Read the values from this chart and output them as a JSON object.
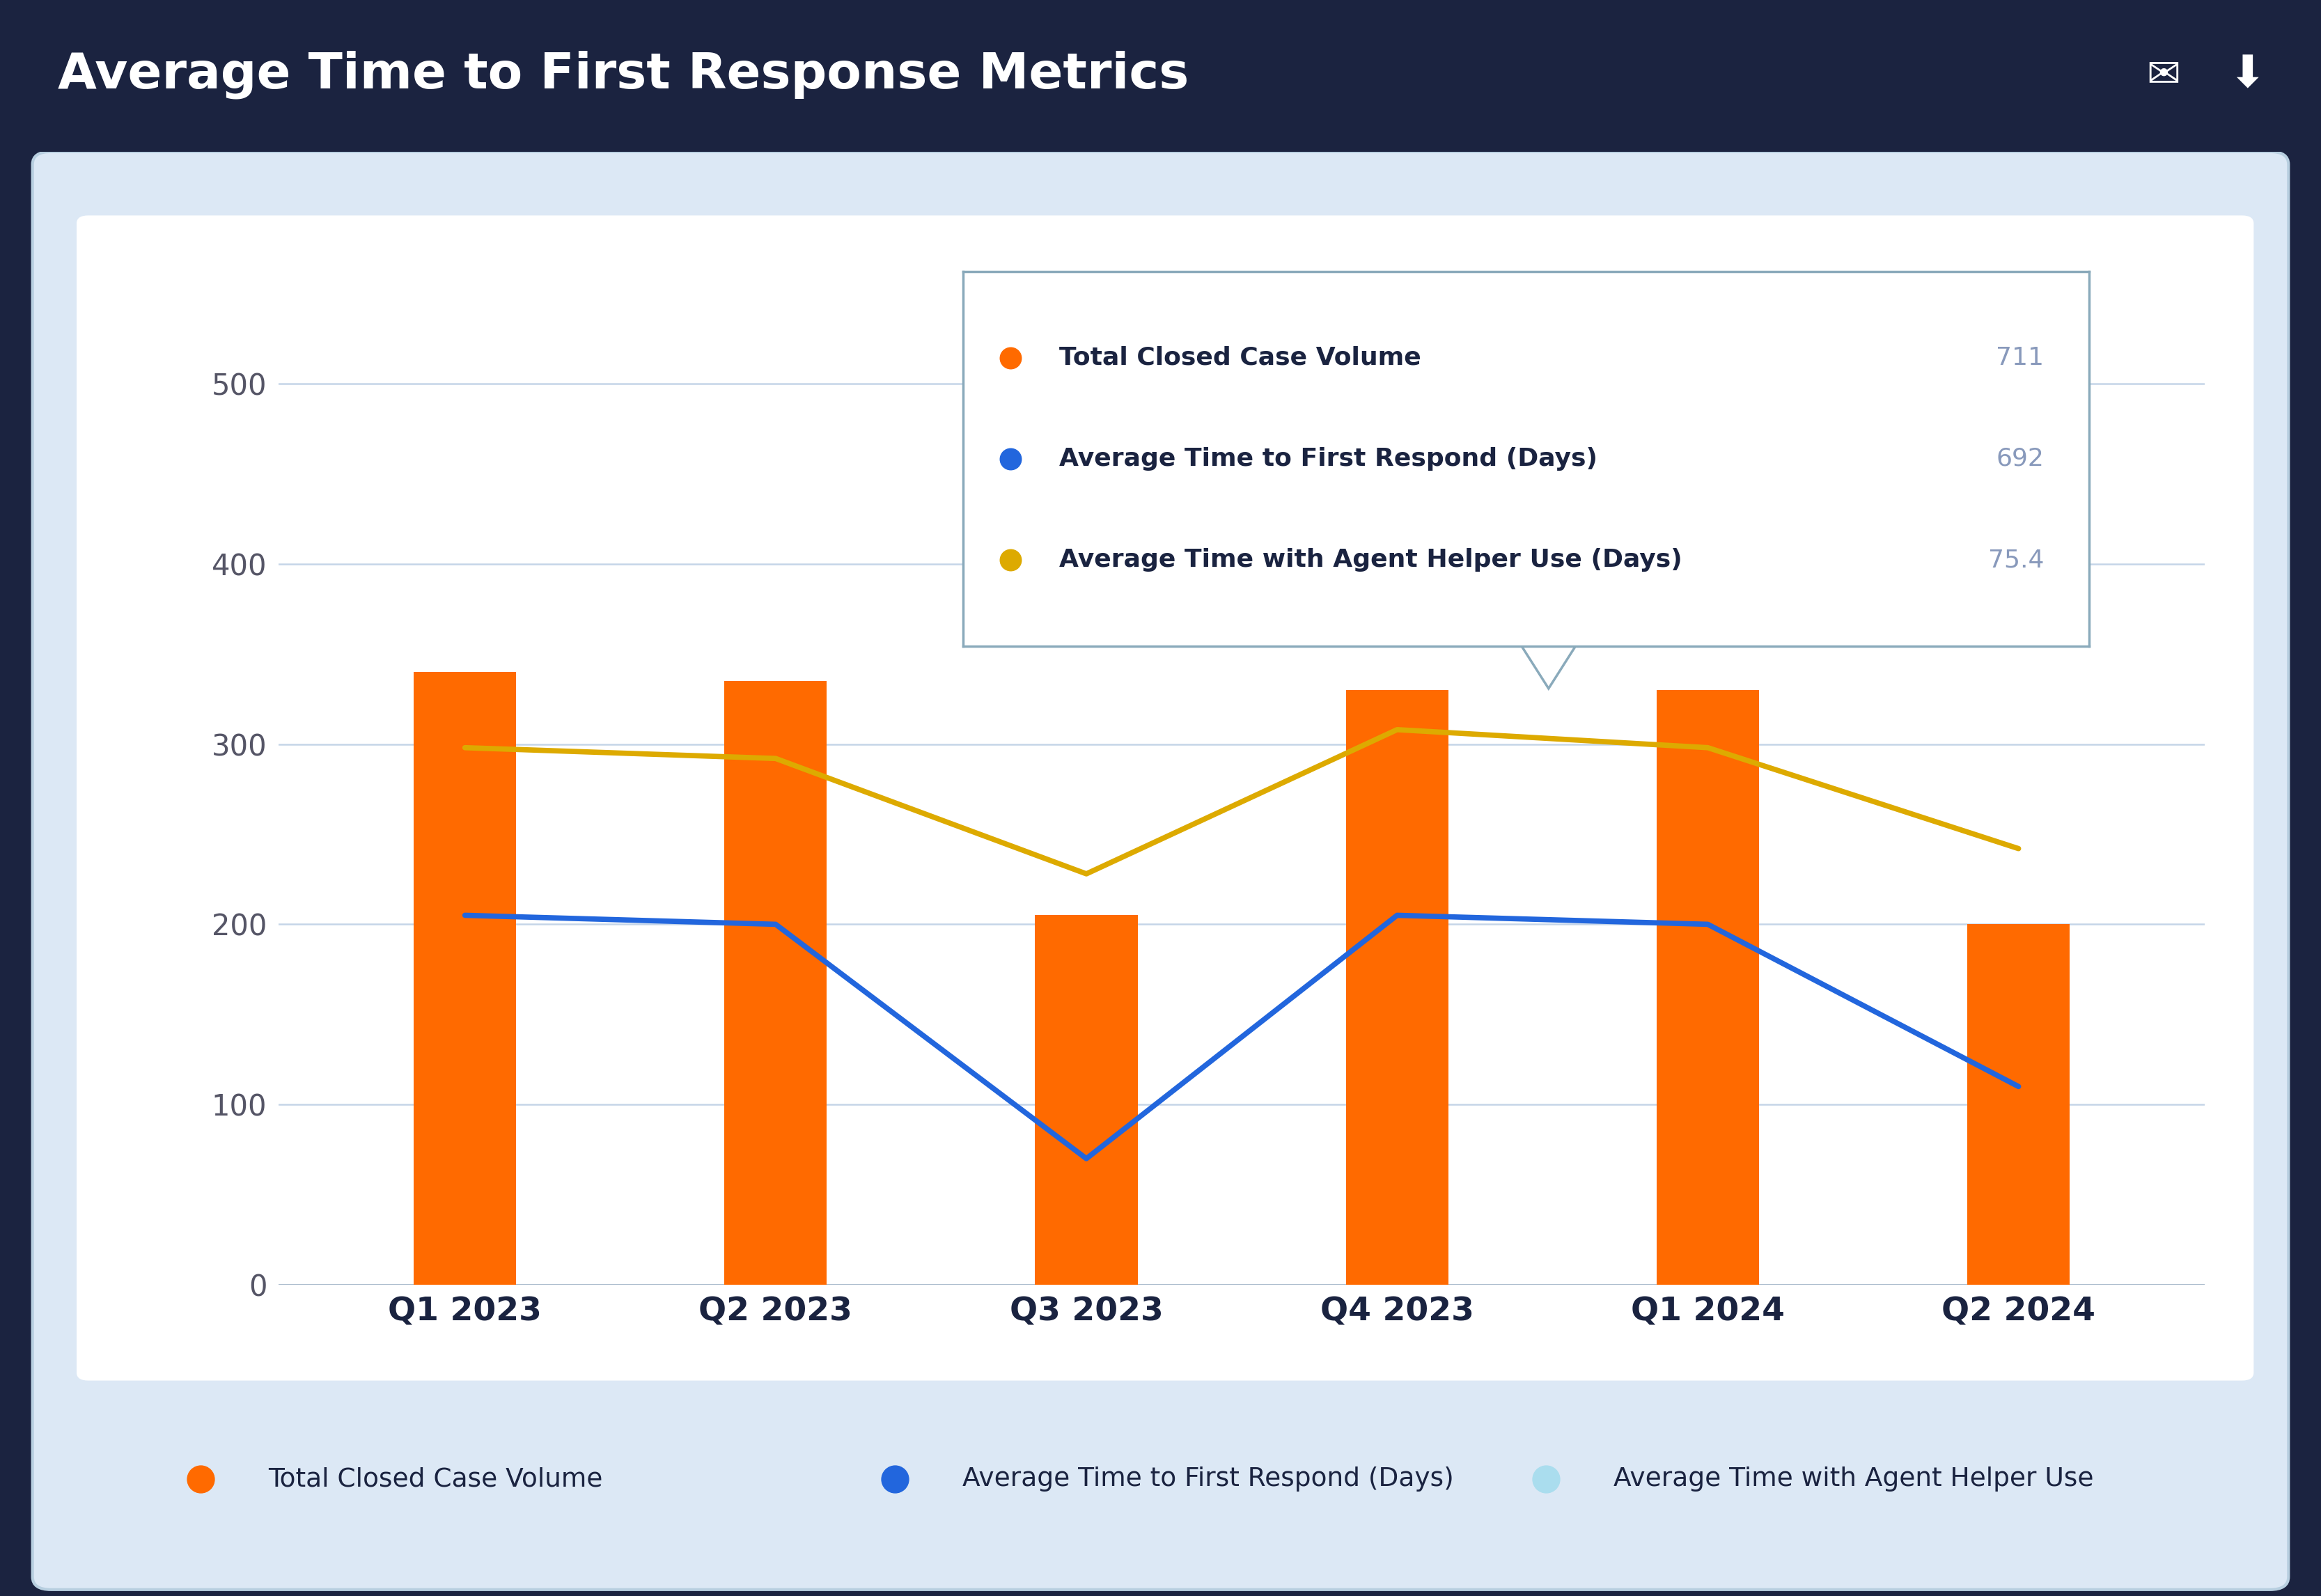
{
  "title": "Average Time to First Response Metrics",
  "header_bg": "#1b2340",
  "outer_bg": "#dce8f5",
  "inner_bg": "#ffffff",
  "categories": [
    "Q1 2023",
    "Q2 2023",
    "Q3 2023",
    "Q4 2023",
    "Q1 2024",
    "Q2 2024"
  ],
  "bar_values": [
    340,
    335,
    205,
    330,
    330,
    200
  ],
  "bar_color": "#ff6a00",
  "line1_values": [
    205,
    200,
    70,
    205,
    200,
    110
  ],
  "line1_color": "#2266dd",
  "line2_values": [
    298,
    292,
    228,
    308,
    298,
    242
  ],
  "line2_color": "#ddaa00",
  "ylim_min": 0,
  "ylim_max": 580,
  "yticks": [
    0,
    100,
    200,
    300,
    400,
    500
  ],
  "grid_color": "#c5d5e8",
  "bar_label": "Total Closed Case Volume",
  "line1_label": "Average Time to First Respond (Days)",
  "line2_label": "Average Time with Agent Helper Use (Days)",
  "tooltip_labels": [
    "Total Closed Case Volume",
    "Average Time to First Respond (Days)",
    "Average Time with Agent Helper Use (Days)"
  ],
  "tooltip_values": [
    "711",
    "692",
    "75.4"
  ],
  "tooltip_dot_colors": [
    "#ff6a00",
    "#2266dd",
    "#ddaa00"
  ],
  "bottom_legend_labels": [
    "Total Closed Case Volume",
    "Average Time to First Respond (Days)",
    "Average Time with Agent Helper Use"
  ],
  "bottom_legend_colors": [
    "#ff6a00",
    "#2266dd",
    "#aaddee"
  ]
}
